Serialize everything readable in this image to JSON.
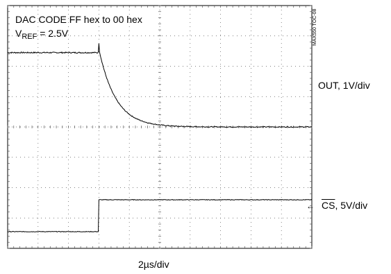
{
  "chart_data": {
    "type": "line",
    "annotation_line1": "DAC CODE FF hex to  00 hex",
    "annotation_line2_main": "V",
    "annotation_line2_sub": "REF",
    "annotation_line2_rest": " = 2.5V",
    "figure_code": "MAX550 TOC-08",
    "x_scale_label": "2µs/div",
    "grid": {
      "divisions_x": 10,
      "divisions_y": 8
    },
    "series": [
      {
        "name": "OUT, 1V/div",
        "volts_per_div": 1,
        "baseline_div": 4.0,
        "initial_div": 6.45,
        "spike_div": 6.75,
        "step_time_div": 3.0,
        "tau_div": 0.55,
        "color": "#000000"
      },
      {
        "name": "CS, 5V/div",
        "name_overline": "CS",
        "name_rest": ", 5V/div",
        "volts_per_div": 5,
        "low_div": 0.55,
        "high_div": 1.6,
        "step_time_div": 3.0,
        "color": "#000000"
      }
    ]
  }
}
